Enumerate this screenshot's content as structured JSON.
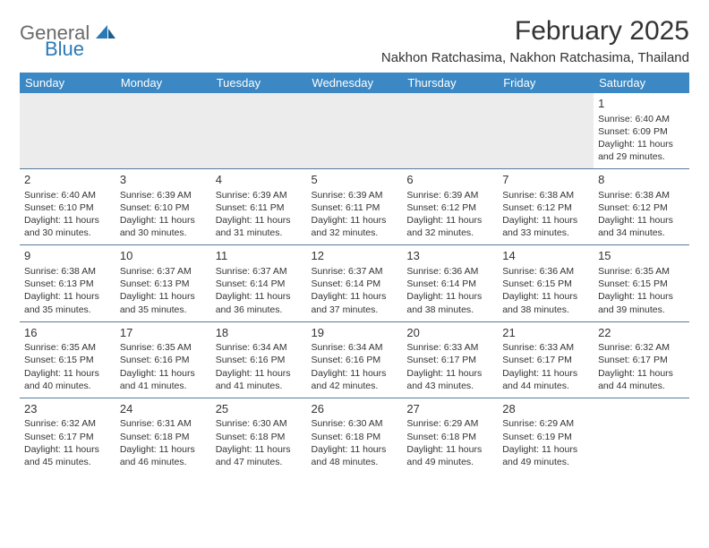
{
  "logo": {
    "general": "General",
    "blue": "Blue"
  },
  "title": "February 2025",
  "location": "Nakhon Ratchasima, Nakhon Ratchasima, Thailand",
  "header_bg": "#3b88c4",
  "day_names": [
    "Sunday",
    "Monday",
    "Tuesday",
    "Wednesday",
    "Thursday",
    "Friday",
    "Saturday"
  ],
  "weeks": [
    [
      null,
      null,
      null,
      null,
      null,
      null,
      {
        "n": "1",
        "sr": "6:40 AM",
        "ss": "6:09 PM",
        "dl": "11 hours and 29 minutes."
      }
    ],
    [
      {
        "n": "2",
        "sr": "6:40 AM",
        "ss": "6:10 PM",
        "dl": "11 hours and 30 minutes."
      },
      {
        "n": "3",
        "sr": "6:39 AM",
        "ss": "6:10 PM",
        "dl": "11 hours and 30 minutes."
      },
      {
        "n": "4",
        "sr": "6:39 AM",
        "ss": "6:11 PM",
        "dl": "11 hours and 31 minutes."
      },
      {
        "n": "5",
        "sr": "6:39 AM",
        "ss": "6:11 PM",
        "dl": "11 hours and 32 minutes."
      },
      {
        "n": "6",
        "sr": "6:39 AM",
        "ss": "6:12 PM",
        "dl": "11 hours and 32 minutes."
      },
      {
        "n": "7",
        "sr": "6:38 AM",
        "ss": "6:12 PM",
        "dl": "11 hours and 33 minutes."
      },
      {
        "n": "8",
        "sr": "6:38 AM",
        "ss": "6:12 PM",
        "dl": "11 hours and 34 minutes."
      }
    ],
    [
      {
        "n": "9",
        "sr": "6:38 AM",
        "ss": "6:13 PM",
        "dl": "11 hours and 35 minutes."
      },
      {
        "n": "10",
        "sr": "6:37 AM",
        "ss": "6:13 PM",
        "dl": "11 hours and 35 minutes."
      },
      {
        "n": "11",
        "sr": "6:37 AM",
        "ss": "6:14 PM",
        "dl": "11 hours and 36 minutes."
      },
      {
        "n": "12",
        "sr": "6:37 AM",
        "ss": "6:14 PM",
        "dl": "11 hours and 37 minutes."
      },
      {
        "n": "13",
        "sr": "6:36 AM",
        "ss": "6:14 PM",
        "dl": "11 hours and 38 minutes."
      },
      {
        "n": "14",
        "sr": "6:36 AM",
        "ss": "6:15 PM",
        "dl": "11 hours and 38 minutes."
      },
      {
        "n": "15",
        "sr": "6:35 AM",
        "ss": "6:15 PM",
        "dl": "11 hours and 39 minutes."
      }
    ],
    [
      {
        "n": "16",
        "sr": "6:35 AM",
        "ss": "6:15 PM",
        "dl": "11 hours and 40 minutes."
      },
      {
        "n": "17",
        "sr": "6:35 AM",
        "ss": "6:16 PM",
        "dl": "11 hours and 41 minutes."
      },
      {
        "n": "18",
        "sr": "6:34 AM",
        "ss": "6:16 PM",
        "dl": "11 hours and 41 minutes."
      },
      {
        "n": "19",
        "sr": "6:34 AM",
        "ss": "6:16 PM",
        "dl": "11 hours and 42 minutes."
      },
      {
        "n": "20",
        "sr": "6:33 AM",
        "ss": "6:17 PM",
        "dl": "11 hours and 43 minutes."
      },
      {
        "n": "21",
        "sr": "6:33 AM",
        "ss": "6:17 PM",
        "dl": "11 hours and 44 minutes."
      },
      {
        "n": "22",
        "sr": "6:32 AM",
        "ss": "6:17 PM",
        "dl": "11 hours and 44 minutes."
      }
    ],
    [
      {
        "n": "23",
        "sr": "6:32 AM",
        "ss": "6:17 PM",
        "dl": "11 hours and 45 minutes."
      },
      {
        "n": "24",
        "sr": "6:31 AM",
        "ss": "6:18 PM",
        "dl": "11 hours and 46 minutes."
      },
      {
        "n": "25",
        "sr": "6:30 AM",
        "ss": "6:18 PM",
        "dl": "11 hours and 47 minutes."
      },
      {
        "n": "26",
        "sr": "6:30 AM",
        "ss": "6:18 PM",
        "dl": "11 hours and 48 minutes."
      },
      {
        "n": "27",
        "sr": "6:29 AM",
        "ss": "6:18 PM",
        "dl": "11 hours and 49 minutes."
      },
      {
        "n": "28",
        "sr": "6:29 AM",
        "ss": "6:19 PM",
        "dl": "11 hours and 49 minutes."
      },
      null
    ]
  ],
  "labels": {
    "sunrise": "Sunrise: ",
    "sunset": "Sunset: ",
    "daylight": "Daylight: "
  }
}
